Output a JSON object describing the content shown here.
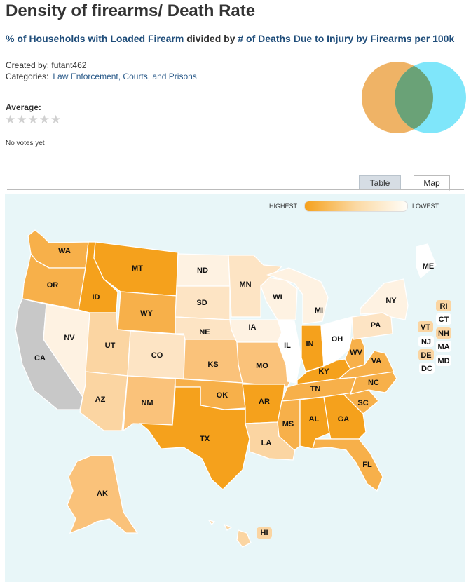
{
  "title": "Density of firearms/ Death Rate",
  "subtitle": {
    "metric_a": "% of Households with Loaded Firearm",
    "connector": " divided by ",
    "metric_b": "# of Deaths Due to Injury by Firearms per 100k"
  },
  "created_by": "Created by: futant462",
  "categories_label": "Categories:",
  "category": "Law Enforcement, Courts, and Prisons",
  "average_label": "Average:",
  "stars": "★★★★★",
  "votes": "No votes yet",
  "venn": {
    "left_color": "#efb366",
    "right_color": "#7fe6fa",
    "overlap_color": "#6aa277"
  },
  "tabs": {
    "table": "Table",
    "map": "Map",
    "active": "Map"
  },
  "legend": {
    "highest": "HIGHEST",
    "lowest": "LOWEST",
    "high_color": "#f5a11c",
    "low_color": "#fffdf8"
  },
  "map_data": {
    "colors": {
      "darkest": "#f5a11c",
      "dark": "#f7b04a",
      "mid": "#fac27a",
      "light": "#fbd5a2",
      "lighter": "#fde4c4",
      "lightest": "#fef2e2",
      "white": "#fff",
      "no_data": "#c8c8c8"
    },
    "states": [
      {
        "abbr": "WA",
        "shade": "dark"
      },
      {
        "abbr": "OR",
        "shade": "dark"
      },
      {
        "abbr": "CA",
        "shade": "no_data"
      },
      {
        "abbr": "NV",
        "shade": "lightest"
      },
      {
        "abbr": "ID",
        "shade": "darkest"
      },
      {
        "abbr": "MT",
        "shade": "darkest"
      },
      {
        "abbr": "WY",
        "shade": "dark"
      },
      {
        "abbr": "UT",
        "shade": "light"
      },
      {
        "abbr": "AZ",
        "shade": "light"
      },
      {
        "abbr": "CO",
        "shade": "lighter"
      },
      {
        "abbr": "NM",
        "shade": "mid"
      },
      {
        "abbr": "ND",
        "shade": "lightest"
      },
      {
        "abbr": "SD",
        "shade": "lighter"
      },
      {
        "abbr": "NE",
        "shade": "lighter"
      },
      {
        "abbr": "KS",
        "shade": "mid"
      },
      {
        "abbr": "OK",
        "shade": "dark"
      },
      {
        "abbr": "TX",
        "shade": "darkest"
      },
      {
        "abbr": "MN",
        "shade": "lighter"
      },
      {
        "abbr": "IA",
        "shade": "lightest"
      },
      {
        "abbr": "MO",
        "shade": "mid"
      },
      {
        "abbr": "AR",
        "shade": "darkest"
      },
      {
        "abbr": "LA",
        "shade": "light"
      },
      {
        "abbr": "WI",
        "shade": "lightest"
      },
      {
        "abbr": "IL",
        "shade": "white"
      },
      {
        "abbr": "MI",
        "shade": "lightest"
      },
      {
        "abbr": "IN",
        "shade": "darkest"
      },
      {
        "abbr": "OH",
        "shade": "white"
      },
      {
        "abbr": "KY",
        "shade": "darkest"
      },
      {
        "abbr": "TN",
        "shade": "dark"
      },
      {
        "abbr": "MS",
        "shade": "dark"
      },
      {
        "abbr": "AL",
        "shade": "darkest"
      },
      {
        "abbr": "GA",
        "shade": "darkest"
      },
      {
        "abbr": "FL",
        "shade": "dark"
      },
      {
        "abbr": "SC",
        "shade": "dark"
      },
      {
        "abbr": "NC",
        "shade": "dark"
      },
      {
        "abbr": "VA",
        "shade": "dark"
      },
      {
        "abbr": "WV",
        "shade": "dark"
      },
      {
        "abbr": "PA",
        "shade": "lighter"
      },
      {
        "abbr": "NY",
        "shade": "lightest"
      },
      {
        "abbr": "ME",
        "shade": "white"
      },
      {
        "abbr": "AK",
        "shade": "mid"
      },
      {
        "abbr": "HI",
        "shade": "light"
      },
      {
        "abbr": "RI",
        "shade": "light"
      },
      {
        "abbr": "CT",
        "shade": "white"
      },
      {
        "abbr": "VT",
        "shade": "light"
      },
      {
        "abbr": "NH",
        "shade": "light"
      },
      {
        "abbr": "NJ",
        "shade": "white"
      },
      {
        "abbr": "MA",
        "shade": "white"
      },
      {
        "abbr": "DE",
        "shade": "light"
      },
      {
        "abbr": "MD",
        "shade": "white"
      },
      {
        "abbr": "DC",
        "shade": "white"
      }
    ]
  }
}
